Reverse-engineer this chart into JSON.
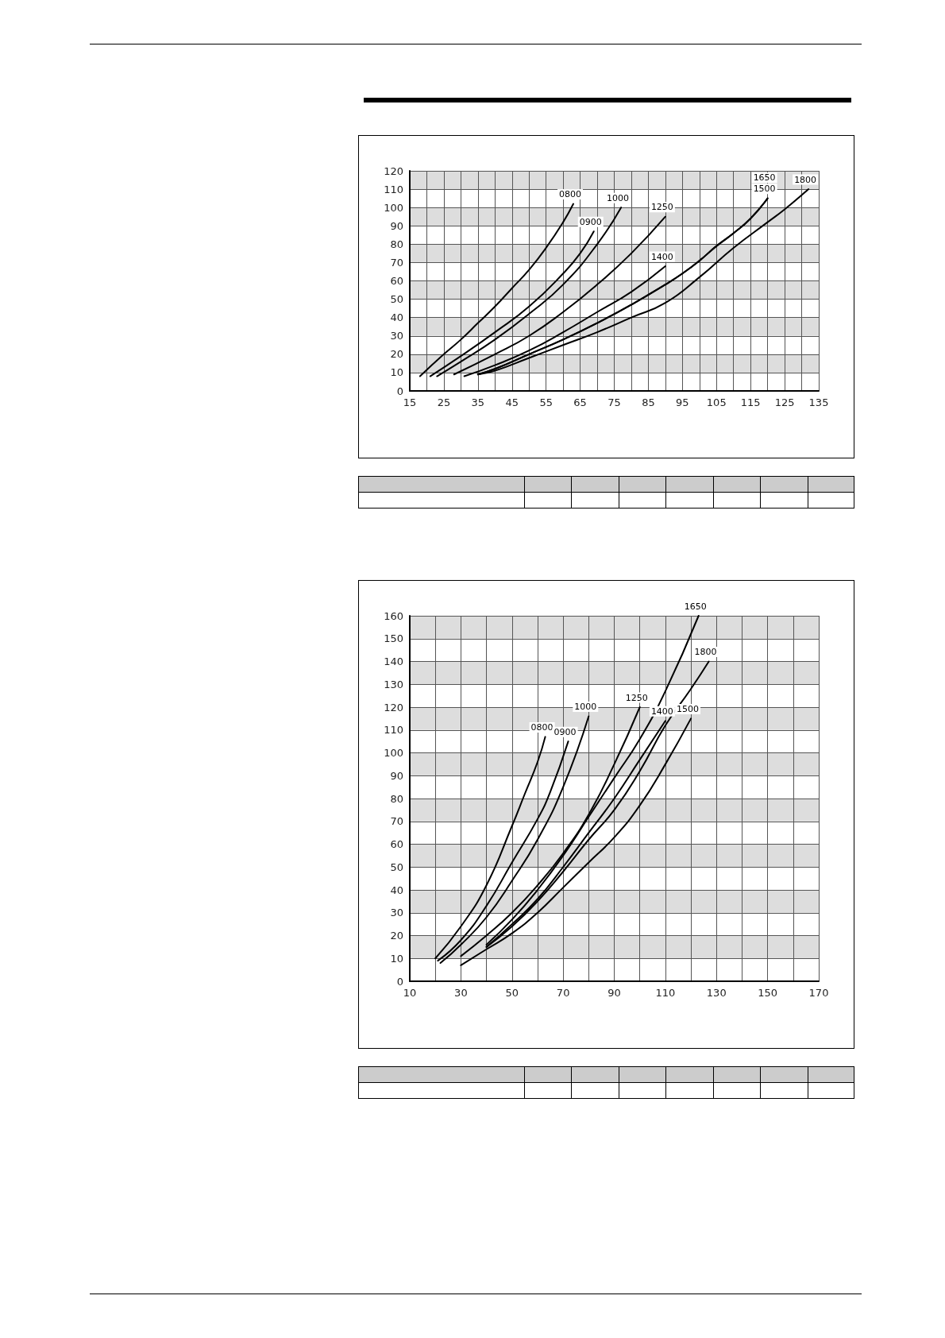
{
  "chart_data": [
    {
      "type": "line",
      "grid": true,
      "marker": "none",
      "line_style": "solid",
      "legend": false,
      "xlim": [
        15,
        135
      ],
      "xticks": [
        15,
        {
          "value": 20,
          "label": null
        },
        25,
        {
          "value": 30,
          "label": null
        },
        35,
        {
          "value": 40,
          "label": null
        },
        45,
        {
          "value": 50,
          "label": null
        },
        55,
        {
          "value": 60,
          "label": null
        },
        65,
        {
          "value": 70,
          "label": null
        },
        75,
        {
          "value": 80,
          "label": null
        },
        85,
        {
          "value": 90,
          "label": null
        },
        95,
        {
          "value": 100,
          "label": null
        },
        105,
        {
          "value": 110,
          "label": null
        },
        115,
        {
          "value": 120,
          "label": null
        },
        125,
        {
          "value": 130,
          "label": null
        },
        135
      ],
      "ylim": [
        0,
        120
      ],
      "yticks": [
        0,
        10,
        20,
        30,
        40,
        50,
        60,
        70,
        80,
        90,
        100,
        110,
        120
      ],
      "series": [
        {
          "name": "0800",
          "color": "#000000",
          "x": [
            18,
            25,
            30,
            35,
            40,
            45,
            50,
            55,
            60,
            63
          ],
          "values": [
            8,
            20,
            28,
            37,
            46,
            56,
            66,
            78,
            92,
            102
          ]
        },
        {
          "name": "0900",
          "color": "#000000",
          "x": [
            21,
            30,
            40,
            50,
            60,
            65,
            69
          ],
          "values": [
            8,
            19,
            32,
            46,
            64,
            75,
            87
          ]
        },
        {
          "name": "1000",
          "color": "#000000",
          "x": [
            23,
            30,
            40,
            50,
            60,
            70,
            77
          ],
          "values": [
            8,
            16,
            28,
            42,
            58,
            80,
            100
          ]
        },
        {
          "name": "1250",
          "color": "#000000",
          "x": [
            28,
            40,
            50,
            60,
            70,
            80,
            90
          ],
          "values": [
            9,
            20,
            30,
            43,
            58,
            75,
            95
          ]
        },
        {
          "name": "1400",
          "color": "#000000",
          "x": [
            31,
            40,
            50,
            60,
            70,
            80,
            90
          ],
          "values": [
            8,
            14,
            22,
            32,
            43,
            54,
            68
          ]
        },
        {
          "name": "1500",
          "color": "#000000",
          "x": [
            35,
            40,
            50,
            60,
            70,
            80,
            90,
            95,
            100,
            105,
            110,
            115,
            120
          ],
          "values": [
            9,
            12,
            20,
            28,
            37,
            47,
            58,
            64,
            71,
            79,
            86,
            94,
            105
          ]
        },
        {
          "name": "1650",
          "color": "#000000",
          "x": [
            35,
            40,
            50,
            60,
            70,
            80,
            90,
            95,
            100,
            105,
            110,
            115,
            120
          ],
          "values": [
            9,
            12,
            20,
            28,
            37,
            47,
            58,
            64,
            71,
            79,
            86,
            94,
            105
          ]
        },
        {
          "name": "1800",
          "color": "#000000",
          "x": [
            35,
            40,
            50,
            60,
            70,
            80,
            90,
            100,
            110,
            120,
            125,
            132
          ],
          "values": [
            9,
            11,
            18,
            25,
            32,
            40,
            48,
            62,
            78,
            92,
            99,
            110
          ]
        }
      ]
    },
    {
      "type": "line",
      "grid": true,
      "marker": "none",
      "line_style": "solid",
      "legend": false,
      "xlim": [
        10,
        170
      ],
      "xticks": [
        10,
        {
          "value": 20,
          "label": null
        },
        30,
        {
          "value": 40,
          "label": null
        },
        50,
        {
          "value": 60,
          "label": null
        },
        70,
        {
          "value": 80,
          "label": null
        },
        90,
        {
          "value": 100,
          "label": null
        },
        110,
        {
          "value": 120,
          "label": null
        },
        130,
        {
          "value": 140,
          "label": null
        },
        150,
        {
          "value": 160,
          "label": null
        },
        170
      ],
      "ylim": [
        0,
        160
      ],
      "yticks": [
        0,
        10,
        20,
        30,
        40,
        50,
        60,
        70,
        80,
        90,
        100,
        110,
        120,
        130,
        140,
        150,
        160
      ],
      "series": [
        {
          "name": "0800",
          "color": "#000000",
          "x": [
            20,
            30,
            40,
            50,
            55,
            60,
            63
          ],
          "values": [
            10,
            24,
            42,
            68,
            82,
            96,
            107
          ]
        },
        {
          "name": "0900",
          "color": "#000000",
          "x": [
            21,
            30,
            40,
            50,
            60,
            65,
            72
          ],
          "values": [
            9,
            18,
            33,
            52,
            71,
            83,
            105
          ]
        },
        {
          "name": "1000",
          "color": "#000000",
          "x": [
            22,
            30,
            40,
            50,
            60,
            70,
            80
          ],
          "values": [
            8,
            16,
            28,
            44,
            62,
            85,
            116
          ]
        },
        {
          "name": "1250",
          "color": "#000000",
          "x": [
            30,
            40,
            50,
            60,
            70,
            80,
            90,
            100
          ],
          "values": [
            11,
            20,
            30,
            42,
            56,
            73,
            95,
            120
          ]
        },
        {
          "name": "1400",
          "color": "#000000",
          "x": [
            40,
            50,
            60,
            70,
            80,
            90,
            100,
            110
          ],
          "values": [
            15,
            25,
            36,
            50,
            65,
            80,
            97,
            114
          ]
        },
        {
          "name": "1500",
          "color": "#000000",
          "x": [
            30,
            40,
            50,
            60,
            70,
            80,
            90,
            100,
            110,
            120
          ],
          "values": [
            7,
            14,
            21,
            30,
            41,
            52,
            63,
            77,
            95,
            115
          ]
        },
        {
          "name": "1650",
          "color": "#000000",
          "x": [
            40,
            50,
            60,
            70,
            80,
            90,
            100,
            110,
            123
          ],
          "values": [
            16,
            27,
            40,
            55,
            72,
            89,
            106,
            127,
            160
          ]
        },
        {
          "name": "1800",
          "color": "#000000",
          "x": [
            40,
            50,
            60,
            70,
            80,
            90,
            100,
            110,
            120,
            127
          ],
          "values": [
            15,
            24,
            35,
            48,
            62,
            75,
            92,
            112,
            128,
            140
          ]
        }
      ]
    }
  ]
}
